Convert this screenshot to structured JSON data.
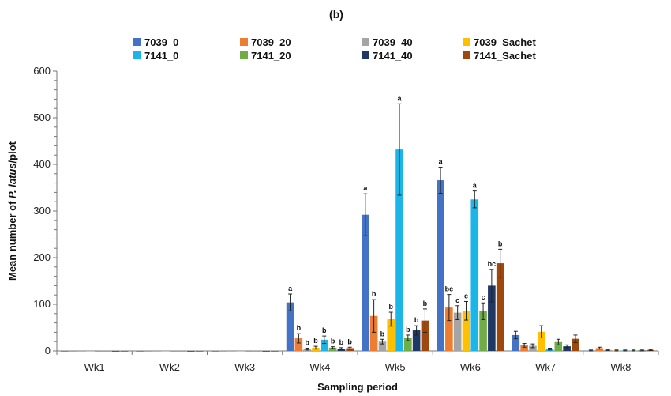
{
  "chart_data": {
    "type": "bar",
    "title": "(b)",
    "xlabel": "Sampling period",
    "ylabel_prefix": "Mean number of ",
    "ylabel_italic": "P. latus",
    "ylabel_suffix": "/plot",
    "ylim": [
      0,
      600
    ],
    "yticks": [
      0,
      100,
      200,
      300,
      400,
      500,
      600
    ],
    "grid": false,
    "legend_position": "top",
    "categories": [
      "Wk1",
      "Wk2",
      "Wk3",
      "Wk4",
      "Wk5",
      "Wk6",
      "Wk7",
      "Wk8"
    ],
    "series": [
      {
        "name": "7039_0",
        "color": "#4472C4",
        "values": [
          0,
          0,
          0,
          104,
          292,
          366,
          34,
          1
        ],
        "errors": [
          0,
          0,
          0,
          18,
          45,
          28,
          8,
          1
        ],
        "labels": [
          "",
          "",
          "",
          "a",
          "a",
          "a",
          "",
          ""
        ]
      },
      {
        "name": "7039_20",
        "color": "#ED7D31",
        "values": [
          0,
          0,
          0,
          27,
          75,
          93,
          12,
          6
        ],
        "errors": [
          0,
          0,
          0,
          10,
          35,
          28,
          4,
          2
        ],
        "labels": [
          "",
          "",
          "",
          "b",
          "b",
          "bc",
          "",
          ""
        ]
      },
      {
        "name": "7039_40",
        "color": "#A5A5A5",
        "values": [
          0,
          0,
          0,
          4,
          20,
          82,
          11,
          2
        ],
        "errors": [
          0,
          0,
          0,
          2,
          5,
          15,
          4,
          1
        ],
        "labels": [
          "",
          "",
          "",
          "b",
          "b",
          "c",
          "",
          ""
        ]
      },
      {
        "name": "7039_Sachet",
        "color": "#FFC000",
        "values": [
          0,
          0,
          0,
          7,
          68,
          86,
          41,
          1
        ],
        "errors": [
          0,
          0,
          0,
          3,
          15,
          20,
          13,
          1
        ],
        "labels": [
          "",
          "",
          "",
          "b",
          "b",
          "c",
          "",
          ""
        ]
      },
      {
        "name": "7141_0",
        "color": "#1CB5E8",
        "values": [
          0,
          0,
          0,
          24,
          432,
          325,
          4,
          1
        ],
        "errors": [
          0,
          0,
          0,
          8,
          98,
          18,
          2,
          1
        ],
        "labels": [
          "",
          "",
          "",
          "b",
          "a",
          "a",
          "",
          ""
        ]
      },
      {
        "name": "7141_20",
        "color": "#70AD47",
        "values": [
          0,
          0,
          0,
          7,
          28,
          85,
          19,
          1
        ],
        "errors": [
          0,
          0,
          0,
          2,
          6,
          18,
          6,
          1
        ],
        "labels": [
          "",
          "",
          "",
          "b",
          "b",
          "c",
          "",
          ""
        ]
      },
      {
        "name": "7141_40",
        "color": "#203864",
        "values": [
          0,
          0,
          0,
          5,
          44,
          140,
          10,
          1
        ],
        "errors": [
          0,
          0,
          0,
          2,
          10,
          35,
          3,
          1
        ],
        "labels": [
          "",
          "",
          "",
          "b",
          "b",
          "bc",
          "",
          ""
        ]
      },
      {
        "name": "7141_Sachet",
        "color": "#9E480E",
        "values": [
          0,
          0,
          0,
          6,
          65,
          188,
          26,
          2
        ],
        "errors": [
          0,
          0,
          0,
          2,
          25,
          30,
          8,
          1
        ],
        "labels": [
          "",
          "",
          "",
          "b",
          "b",
          "b",
          "",
          ""
        ]
      }
    ]
  }
}
